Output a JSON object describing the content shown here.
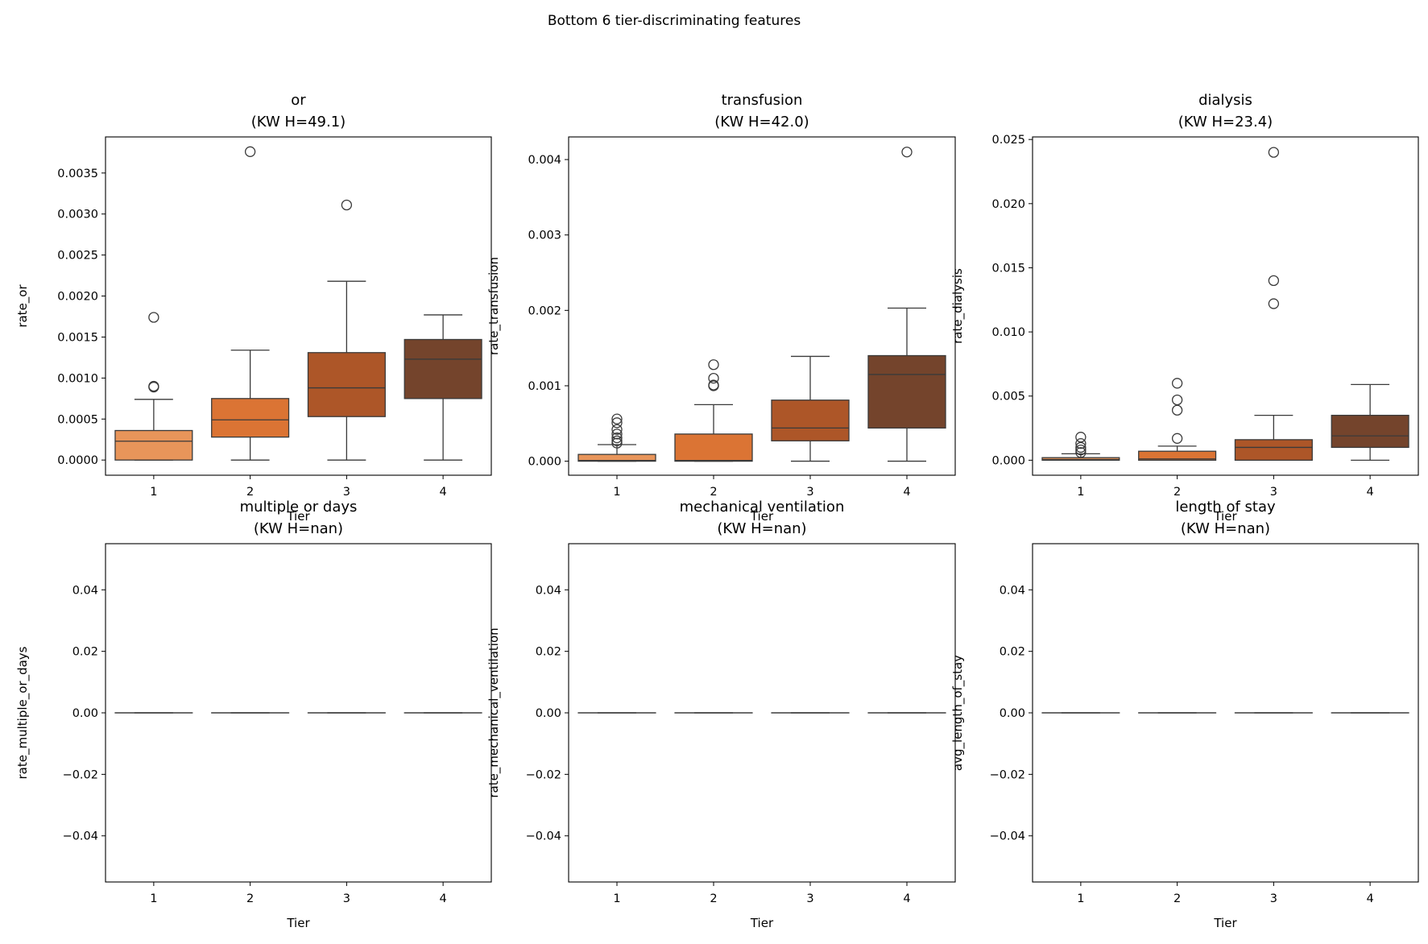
{
  "figure_title": "Bottom 6 tier-discriminating features",
  "chart_data": [
    {
      "type": "box",
      "title_line1": "or",
      "title_line2": "(KW H=49.1)",
      "xlabel": "Tier",
      "ylabel": "rate_or",
      "categories": [
        "1",
        "2",
        "3",
        "4"
      ],
      "ylim": [
        -0.000185,
        0.00394
      ],
      "yticks": [
        0,
        0.0005,
        0.001,
        0.0015,
        0.002,
        0.0025,
        0.003,
        0.0035
      ],
      "ytick_labels": [
        "0.0000",
        "0.0005",
        "0.0010",
        "0.0015",
        "0.0020",
        "0.0025",
        "0.0030",
        "0.0035"
      ],
      "boxes": [
        {
          "whislo": 0,
          "q1": 0,
          "med": 0.00023,
          "q3": 0.00036,
          "whishi": 0.00074,
          "fliers": [
            0.00174,
            0.0009,
            0.00089
          ]
        },
        {
          "whislo": 0,
          "q1": 0.00028,
          "med": 0.00049,
          "q3": 0.00075,
          "whishi": 0.00134,
          "fliers": [
            0.00376
          ]
        },
        {
          "whislo": 0,
          "q1": 0.00053,
          "med": 0.00088,
          "q3": 0.00131,
          "whishi": 0.00218,
          "fliers": [
            0.00311
          ]
        },
        {
          "whislo": 0,
          "q1": 0.00075,
          "med": 0.00123,
          "q3": 0.00147,
          "whishi": 0.00177,
          "fliers": []
        }
      ]
    },
    {
      "type": "box",
      "title_line1": "transfusion",
      "title_line2": "(KW H=42.0)",
      "xlabel": "Tier",
      "ylabel": "rate_transfusion",
      "categories": [
        "1",
        "2",
        "3",
        "4"
      ],
      "ylim": [
        -0.000186,
        0.0043
      ],
      "yticks": [
        0,
        0.001,
        0.002,
        0.003,
        0.004
      ],
      "ytick_labels": [
        "0.000",
        "0.001",
        "0.002",
        "0.003",
        "0.004"
      ],
      "boxes": [
        {
          "whislo": 0,
          "q1": 0,
          "med": 1e-05,
          "q3": 9e-05,
          "whishi": 0.00022,
          "fliers": [
            0.00056,
            0.00051,
            0.00042,
            0.00036,
            0.00031,
            0.00027,
            0.00024
          ]
        },
        {
          "whislo": 0,
          "q1": 0,
          "med": 1e-05,
          "q3": 0.00036,
          "whishi": 0.00075,
          "fliers": [
            0.00128,
            0.0011,
            0.00101,
            0.001
          ]
        },
        {
          "whislo": 0,
          "q1": 0.00027,
          "med": 0.00044,
          "q3": 0.00081,
          "whishi": 0.00139,
          "fliers": []
        },
        {
          "whislo": 0,
          "q1": 0.00044,
          "med": 0.00115,
          "q3": 0.0014,
          "whishi": 0.00203,
          "fliers": [
            0.0041
          ]
        }
      ]
    },
    {
      "type": "box",
      "title_line1": "dialysis",
      "title_line2": "(KW H=23.4)",
      "xlabel": "Tier",
      "ylabel": "rate_dialysis",
      "categories": [
        "1",
        "2",
        "3",
        "4"
      ],
      "ylim": [
        -0.00117,
        0.0252
      ],
      "yticks": [
        0,
        0.005,
        0.01,
        0.015,
        0.02,
        0.025
      ],
      "ytick_labels": [
        "0.000",
        "0.005",
        "0.010",
        "0.015",
        "0.020",
        "0.025"
      ],
      "boxes": [
        {
          "whislo": 0,
          "q1": 0,
          "med": 5e-05,
          "q3": 0.0002,
          "whishi": 0.0005,
          "fliers": [
            0.0018,
            0.0013,
            0.001,
            0.0008,
            0.0006
          ]
        },
        {
          "whislo": 0,
          "q1": 0,
          "med": 0.0001,
          "q3": 0.0007,
          "whishi": 0.0011,
          "fliers": [
            0.006,
            0.0047,
            0.0039,
            0.0017
          ]
        },
        {
          "whislo": 0,
          "q1": 0,
          "med": 0.001,
          "q3": 0.0016,
          "whishi": 0.0035,
          "fliers": [
            0.024,
            0.014,
            0.0122
          ]
        },
        {
          "whislo": 0,
          "q1": 0.001,
          "med": 0.0019,
          "q3": 0.0035,
          "whishi": 0.0059,
          "fliers": []
        }
      ]
    },
    {
      "type": "box",
      "title_line1": "multiple or days",
      "title_line2": "(KW H=nan)",
      "xlabel": "Tier",
      "ylabel": "rate_multiple_or_days",
      "categories": [
        "1",
        "2",
        "3",
        "4"
      ],
      "ylim": [
        -0.055,
        0.055
      ],
      "yticks": [
        -0.04,
        -0.02,
        0,
        0.02,
        0.04
      ],
      "ytick_labels": [
        "−0.04",
        "−0.02",
        "0.00",
        "0.02",
        "0.04"
      ],
      "boxes": [
        {
          "whislo": 0,
          "q1": 0,
          "med": 0,
          "q3": 0,
          "whishi": 0,
          "fliers": []
        },
        {
          "whislo": 0,
          "q1": 0,
          "med": 0,
          "q3": 0,
          "whishi": 0,
          "fliers": []
        },
        {
          "whislo": 0,
          "q1": 0,
          "med": 0,
          "q3": 0,
          "whishi": 0,
          "fliers": []
        },
        {
          "whislo": 0,
          "q1": 0,
          "med": 0,
          "q3": 0,
          "whishi": 0,
          "fliers": []
        }
      ]
    },
    {
      "type": "box",
      "title_line1": "mechanical ventilation",
      "title_line2": "(KW H=nan)",
      "xlabel": "Tier",
      "ylabel": "rate_mechanical_ventilation",
      "categories": [
        "1",
        "2",
        "3",
        "4"
      ],
      "ylim": [
        -0.055,
        0.055
      ],
      "yticks": [
        -0.04,
        -0.02,
        0,
        0.02,
        0.04
      ],
      "ytick_labels": [
        "−0.04",
        "−0.02",
        "0.00",
        "0.02",
        "0.04"
      ],
      "boxes": [
        {
          "whislo": 0,
          "q1": 0,
          "med": 0,
          "q3": 0,
          "whishi": 0,
          "fliers": []
        },
        {
          "whislo": 0,
          "q1": 0,
          "med": 0,
          "q3": 0,
          "whishi": 0,
          "fliers": []
        },
        {
          "whislo": 0,
          "q1": 0,
          "med": 0,
          "q3": 0,
          "whishi": 0,
          "fliers": []
        },
        {
          "whislo": 0,
          "q1": 0,
          "med": 0,
          "q3": 0,
          "whishi": 0,
          "fliers": []
        }
      ]
    },
    {
      "type": "box",
      "title_line1": "length of stay",
      "title_line2": "(KW H=nan)",
      "xlabel": "Tier",
      "ylabel": "avg_length_of_stay",
      "categories": [
        "1",
        "2",
        "3",
        "4"
      ],
      "ylim": [
        -0.055,
        0.055
      ],
      "yticks": [
        -0.04,
        -0.02,
        0,
        0.02,
        0.04
      ],
      "ytick_labels": [
        "−0.04",
        "−0.02",
        "0.00",
        "0.02",
        "0.04"
      ],
      "boxes": [
        {
          "whislo": 0,
          "q1": 0,
          "med": 0,
          "q3": 0,
          "whishi": 0,
          "fliers": []
        },
        {
          "whislo": 0,
          "q1": 0,
          "med": 0,
          "q3": 0,
          "whishi": 0,
          "fliers": []
        },
        {
          "whislo": 0,
          "q1": 0,
          "med": 0,
          "q3": 0,
          "whishi": 0,
          "fliers": []
        },
        {
          "whislo": 0,
          "q1": 0,
          "med": 0,
          "q3": 0,
          "whishi": 0,
          "fliers": []
        }
      ]
    }
  ],
  "palette": [
    "#e8955a",
    "#db7434",
    "#ad5628",
    "#74442c"
  ]
}
